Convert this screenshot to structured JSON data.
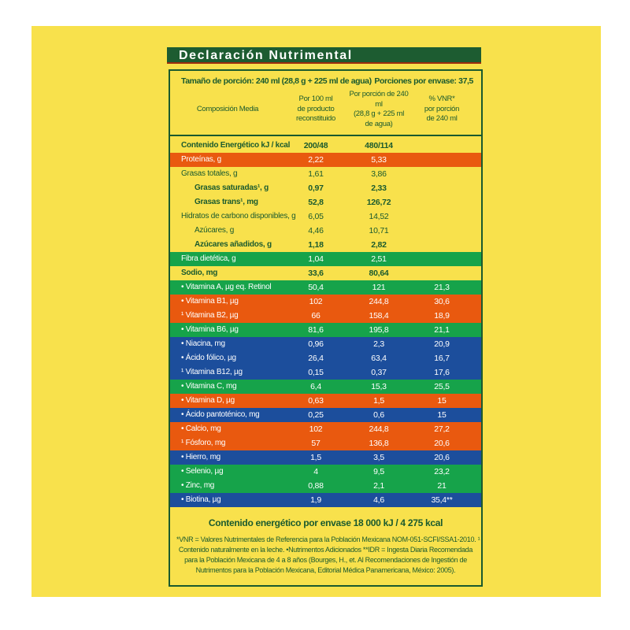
{
  "colors": {
    "label-yellow": "#F8E14C",
    "dark-green": "#1A5A2E",
    "title-bar-green": "#1D5C31",
    "title-underline-red": "#9B2D0E",
    "row-orange": "#E9590F",
    "row-green": "#16A34A",
    "row-blue": "#1C4E9C",
    "row-text-light": "#FFFFFF"
  },
  "label": {
    "title": "Declaración Nutrimental",
    "serving_size": "Tamaño de porción: 240 ml (28,8 g + 225 ml de agua)",
    "servings_per_container": "Porciones por envase: 37,5",
    "columns": {
      "composition": "Composición Media",
      "per_100ml": "Por 100 ml\nde producto\nreconstituido",
      "per_portion": "Por porción de 240 ml\n(28,8 g + 225 ml\nde agua)",
      "vnr": "% VNR*\npor porción\nde 240 ml"
    },
    "rows": [
      {
        "name": "Contenido Energético kJ / kcal",
        "per100": "200/48",
        "per240": "480/114",
        "vnr": "",
        "bg": "yellow",
        "bold": true,
        "indent": false
      },
      {
        "name": "Proteínas, g",
        "per100": "2,22",
        "per240": "5,33",
        "vnr": "",
        "bg": "orange",
        "bold": false,
        "indent": false
      },
      {
        "name": "Grasas totales, g",
        "per100": "1,61",
        "per240": "3,86",
        "vnr": "",
        "bg": "yellow",
        "bold": false,
        "indent": false
      },
      {
        "name": "Grasas saturadas¹, g",
        "per100": "0,97",
        "per240": "2,33",
        "vnr": "",
        "bg": "yellow",
        "bold": true,
        "indent": true
      },
      {
        "name": "Grasas trans¹, mg",
        "per100": "52,8",
        "per240": "126,72",
        "vnr": "",
        "bg": "yellow",
        "bold": true,
        "indent": true
      },
      {
        "name": "Hidratos de carbono disponibles, g",
        "per100": "6,05",
        "per240": "14,52",
        "vnr": "",
        "bg": "yellow",
        "bold": false,
        "indent": false
      },
      {
        "name": "Azúcares, g",
        "per100": "4,46",
        "per240": "10,71",
        "vnr": "",
        "bg": "yellow",
        "bold": false,
        "indent": true
      },
      {
        "name": "Azúcares añadidos, g",
        "per100": "1,18",
        "per240": "2,82",
        "vnr": "",
        "bg": "yellow",
        "bold": true,
        "indent": true
      },
      {
        "name": "Fibra dietética, g",
        "per100": "1,04",
        "per240": "2,51",
        "vnr": "",
        "bg": "green",
        "bold": false,
        "indent": false
      },
      {
        "name": "Sodio, mg",
        "per100": "33,6",
        "per240": "80,64",
        "vnr": "",
        "bg": "yellow",
        "bold": true,
        "indent": false
      },
      {
        "name": "• Vitamina A, µg eq. Retinol",
        "per100": "50,4",
        "per240": "121",
        "vnr": "21,3",
        "bg": "green",
        "bold": false,
        "indent": false
      },
      {
        "name": "• Vitamina B1, µg",
        "per100": "102",
        "per240": "244,8",
        "vnr": "30,6",
        "bg": "orange",
        "bold": false,
        "indent": false
      },
      {
        "name": "¹ Vitamina B2, µg",
        "per100": "66",
        "per240": "158,4",
        "vnr": "18,9",
        "bg": "orange",
        "bold": false,
        "indent": false
      },
      {
        "name": "• Vitamina B6, µg",
        "per100": "81,6",
        "per240": "195,8",
        "vnr": "21,1",
        "bg": "green",
        "bold": false,
        "indent": false
      },
      {
        "name": "• Niacina, mg",
        "per100": "0,96",
        "per240": "2,3",
        "vnr": "20,9",
        "bg": "blue",
        "bold": false,
        "indent": false
      },
      {
        "name": "• Ácido fólico, µg",
        "per100": "26,4",
        "per240": "63,4",
        "vnr": "16,7",
        "bg": "blue",
        "bold": false,
        "indent": false
      },
      {
        "name": "¹ Vitamina B12, µg",
        "per100": "0,15",
        "per240": "0,37",
        "vnr": "17,6",
        "bg": "blue",
        "bold": false,
        "indent": false
      },
      {
        "name": "• Vitamina C, mg",
        "per100": "6,4",
        "per240": "15,3",
        "vnr": "25,5",
        "bg": "green",
        "bold": false,
        "indent": false
      },
      {
        "name": "• Vitamina D, µg",
        "per100": "0,63",
        "per240": "1,5",
        "vnr": "15",
        "bg": "orange",
        "bold": false,
        "indent": false
      },
      {
        "name": "• Ácido pantoténico, mg",
        "per100": "0,25",
        "per240": "0,6",
        "vnr": "15",
        "bg": "blue",
        "bold": false,
        "indent": false
      },
      {
        "name": "• Calcio, mg",
        "per100": "102",
        "per240": "244,8",
        "vnr": "27,2",
        "bg": "orange",
        "bold": false,
        "indent": false
      },
      {
        "name": "¹ Fósforo, mg",
        "per100": "57",
        "per240": "136,8",
        "vnr": "20,6",
        "bg": "orange",
        "bold": false,
        "indent": false
      },
      {
        "name": "• Hierro, mg",
        "per100": "1,5",
        "per240": "3,5",
        "vnr": "20,6",
        "bg": "blue",
        "bold": false,
        "indent": false
      },
      {
        "name": "• Selenio, µg",
        "per100": "4",
        "per240": "9,5",
        "vnr": "23,2",
        "bg": "green",
        "bold": false,
        "indent": false
      },
      {
        "name": "• Zinc, mg",
        "per100": "0,88",
        "per240": "2,1",
        "vnr": "21",
        "bg": "green",
        "bold": false,
        "indent": false
      },
      {
        "name": "• Biotina, µg",
        "per100": "1,9",
        "per240": "4,6",
        "vnr": "35,4**",
        "bg": "blue",
        "bold": false,
        "indent": false
      }
    ],
    "energy_per_container": "Contenido energético por envase 18 000 kJ / 4 275 kcal",
    "footnotes": [
      "*VNR = Valores Nutrimentales de Referencia para la Población Mexicana NOM-051-SCFI/SSA1-2010. ¹",
      "Contenido naturalmente en la leche. •Nutrimentos Adicionados   **IDR = Ingesta Diaria Recomendada",
      "para la Población Mexicana de 4 a 8 años (Bourges, H., et. Al Recomendaciones de Ingestión de",
      "Nutrimentos para la Población Mexicana, Editorial Médica Panamericana, México: 2005)."
    ]
  }
}
